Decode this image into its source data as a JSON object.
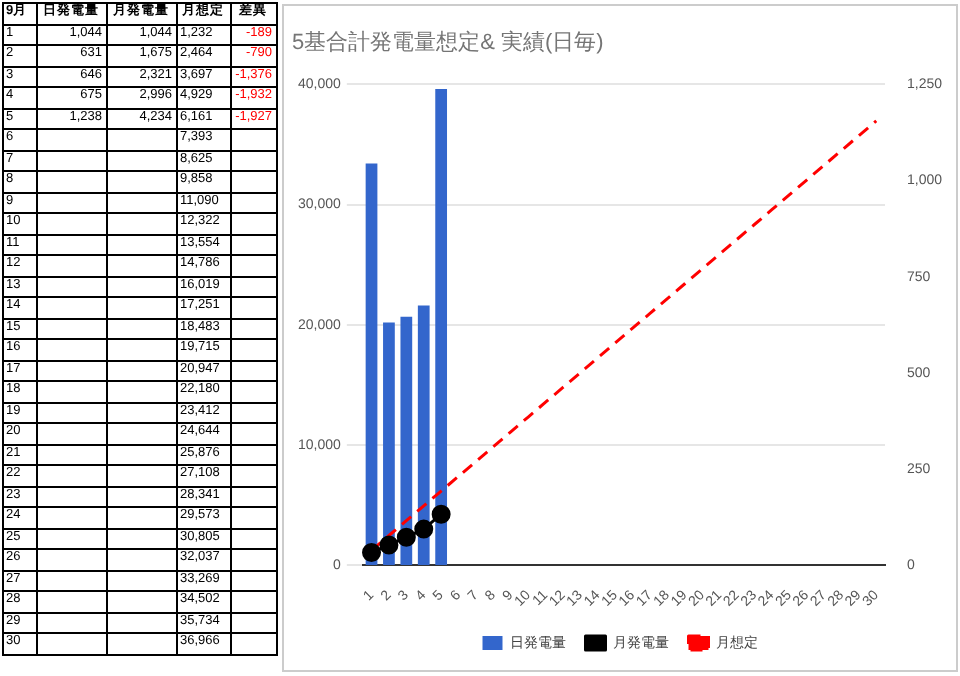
{
  "chart_data": [
    {
      "type": "heatmap",
      "annotations": [
        "9月"
      ],
      "categories": [
        "日発電量",
        "月発電量",
        "月想定",
        "差異"
      ],
      "y_categories": [
        "1",
        "2",
        "3",
        "4",
        "5",
        "6",
        "7",
        "8",
        "9",
        "10",
        "11",
        "12",
        "13",
        "14",
        "15",
        "16",
        "17",
        "18",
        "19",
        "20",
        "21",
        "22",
        "23",
        "24",
        "25",
        "26",
        "27",
        "28",
        "29",
        "30"
      ],
      "cells": [
        [
          null,
          null,
          null,
          null
        ],
        [
          null,
          null,
          null,
          null
        ],
        [
          null,
          null,
          null,
          null
        ],
        [
          null,
          null,
          null,
          null
        ],
        [
          null,
          null,
          null,
          null
        ],
        [
          null,
          null,
          null,
          null
        ],
        [
          null,
          null,
          null,
          null
        ],
        [
          null,
          null,
          null,
          null
        ],
        [
          null,
          null,
          null,
          null
        ],
        [
          null,
          null,
          null,
          null
        ],
        [
          null,
          null,
          null,
          null
        ],
        [
          null,
          null,
          null,
          null
        ],
        [
          null,
          null,
          null,
          null
        ],
        [
          null,
          null,
          null,
          null
        ],
        [
          null,
          null,
          null,
          null
        ],
        [
          null,
          null,
          null,
          null
        ],
        [
          null,
          null,
          null,
          null
        ],
        [
          null,
          null,
          null,
          null
        ],
        [
          null,
          null,
          null,
          null
        ],
        [
          null,
          null,
          null,
          null
        ],
        [
          null,
          null,
          null,
          null
        ],
        [
          null,
          null,
          null,
          null
        ],
        [
          null,
          null,
          null,
          null
        ],
        [
          null,
          null,
          null,
          null
        ],
        [
          null,
          null,
          null,
          null
        ],
        [
          null,
          null,
          null,
          null
        ],
        [
          null,
          null,
          null,
          null
        ],
        [
          null,
          null,
          null,
          null
        ],
        [
          null,
          null,
          null,
          null
        ],
        [
          null,
          null,
          null,
          null
        ]
      ],
      "cell_labels": [
        [
          "1,044",
          "1,044",
          "1,232",
          "-189"
        ],
        [
          "631",
          "1,675",
          "2,464",
          "-790"
        ],
        [
          "646",
          "2,321",
          "3,697",
          "-1,376"
        ],
        [
          "675",
          "2,996",
          "4,929",
          "-1,932"
        ],
        [
          "1,238",
          "4,234",
          "6,161",
          "-1,927"
        ],
        [
          null,
          null,
          "7,393",
          null
        ],
        [
          null,
          null,
          "8,625",
          null
        ],
        [
          null,
          null,
          "9,858",
          null
        ],
        [
          null,
          null,
          "11,090",
          null
        ],
        [
          null,
          null,
          "12,322",
          null
        ],
        [
          null,
          null,
          "13,554",
          null
        ],
        [
          null,
          null,
          "14,786",
          null
        ],
        [
          null,
          null,
          "16,019",
          null
        ],
        [
          null,
          null,
          "17,251",
          null
        ],
        [
          null,
          null,
          "18,483",
          null
        ],
        [
          null,
          null,
          "19,715",
          null
        ],
        [
          null,
          null,
          "20,947",
          null
        ],
        [
          null,
          null,
          "22,180",
          null
        ],
        [
          null,
          null,
          "23,412",
          null
        ],
        [
          null,
          null,
          "24,644",
          null
        ],
        [
          null,
          null,
          "25,876",
          null
        ],
        [
          null,
          null,
          "27,108",
          null
        ],
        [
          null,
          null,
          "28,341",
          null
        ],
        [
          null,
          null,
          "29,573",
          null
        ],
        [
          null,
          null,
          "30,805",
          null
        ],
        [
          null,
          null,
          "32,037",
          null
        ],
        [
          null,
          null,
          "33,269",
          null
        ],
        [
          null,
          null,
          "34,502",
          null
        ],
        [
          null,
          null,
          "35,734",
          null
        ],
        [
          null,
          null,
          "36,966",
          null
        ]
      ]
    },
    {
      "type": "line",
      "title": "5基合計発電量想定& 実績(日毎)",
      "categories": [
        "1",
        "2",
        "3",
        "4",
        "5",
        "6",
        "7",
        "8",
        "9",
        "10",
        "11",
        "12",
        "13",
        "14",
        "15",
        "16",
        "17",
        "18",
        "19",
        "20",
        "21",
        "22",
        "23",
        "24",
        "25",
        "26",
        "27",
        "28",
        "29",
        "30"
      ],
      "series": [
        {
          "name": "日発電量",
          "type": "bar",
          "axis": "y2",
          "color": "#3366cc",
          "values": [
            1044,
            631,
            646,
            675,
            1238,
            null,
            null,
            null,
            null,
            null,
            null,
            null,
            null,
            null,
            null,
            null,
            null,
            null,
            null,
            null,
            null,
            null,
            null,
            null,
            null,
            null,
            null,
            null,
            null,
            null
          ]
        },
        {
          "name": "月発電量",
          "color": "#000000",
          "marker": "circle",
          "values": [
            1044,
            1675,
            2321,
            2996,
            4234,
            null,
            null,
            null,
            null,
            null,
            null,
            null,
            null,
            null,
            null,
            null,
            null,
            null,
            null,
            null,
            null,
            null,
            null,
            null,
            null,
            null,
            null,
            null,
            null,
            null
          ]
        },
        {
          "name": "月想定",
          "color": "#ff0000",
          "line_style": "dashed",
          "values": [
            1232,
            2464,
            3697,
            4929,
            6161,
            7393,
            8625,
            9858,
            11090,
            12322,
            13554,
            14786,
            16019,
            17251,
            18483,
            19715,
            20947,
            22180,
            23412,
            24644,
            25876,
            27108,
            28341,
            29573,
            30805,
            32037,
            33269,
            34502,
            35734,
            36966
          ]
        }
      ],
      "ylim": [
        0,
        40000
      ],
      "yticks": [
        0,
        {
          "value": 10000,
          "label": "10,000"
        },
        {
          "value": 20000,
          "label": "20,000"
        },
        {
          "value": 30000,
          "label": "30,000"
        },
        {
          "value": 40000,
          "label": "40,000"
        }
      ],
      "y2lim": [
        0,
        1250
      ],
      "y2ticks": [
        0,
        250,
        500,
        750,
        {
          "value": 1000,
          "label": "1,000"
        },
        {
          "value": 1250,
          "label": "1,250"
        }
      ],
      "grid": "y",
      "legend": "bottom"
    }
  ]
}
